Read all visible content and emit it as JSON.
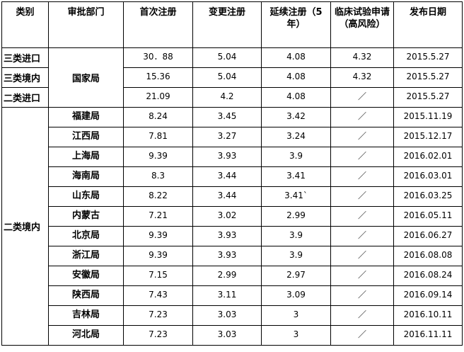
{
  "headers": [
    "类别",
    "审批部门",
    "首次注册",
    "变更注册",
    "延续注册（5年）",
    "临床试验申请（高风险）",
    "发布日期"
  ],
  "national": {
    "department": "国家局",
    "rows": [
      {
        "category": "三类进口",
        "first": "30．88",
        "change": "5.04",
        "renewal": "4.08",
        "clinical": "4.32",
        "date": "2015.5.27"
      },
      {
        "category": "三类境内",
        "first": "15.36",
        "change": "5.04",
        "renewal": "4.08",
        "clinical": "4.32",
        "date": "2015.5.27"
      },
      {
        "category": "二类进口",
        "first": "21.09",
        "change": "4.2",
        "renewal": "4.08",
        "clinical": "／",
        "date": "2015.5.27"
      }
    ]
  },
  "provincial": {
    "category": "二类境内",
    "rows": [
      {
        "department": "福建局",
        "first": "8.24",
        "change": "3.45",
        "renewal": "3.42",
        "clinical": "／",
        "date": "2015.11.19"
      },
      {
        "department": "江西局",
        "first": "7.81",
        "change": "3.27",
        "renewal": "3.24",
        "clinical": "／",
        "date": "2015.12.17"
      },
      {
        "department": "上海局",
        "first": "9.39",
        "change": "3.93",
        "renewal": "3.9",
        "clinical": "／",
        "date": "2016.02.01"
      },
      {
        "department": "海南局",
        "first": "8.3",
        "change": "3.44",
        "renewal": "3.41",
        "clinical": "／",
        "date": "2016.03.01"
      },
      {
        "department": "山东局",
        "first": "8.22",
        "change": "3.44",
        "renewal": "3.41`",
        "clinical": "／",
        "date": "2016.03.25"
      },
      {
        "department": "内蒙古",
        "first": "7.21",
        "change": "3.02",
        "renewal": "2.99",
        "clinical": "／",
        "date": "2016.05.11"
      },
      {
        "department": "北京局",
        "first": "9.39",
        "change": "3.93",
        "renewal": "3.9",
        "clinical": "／",
        "date": "2016.06.27"
      },
      {
        "department": "浙江局",
        "first": "9.39",
        "change": "3.93",
        "renewal": "3.9",
        "clinical": "／",
        "date": "2016.08.08"
      },
      {
        "department": "安徽局",
        "first": "7.15",
        "change": "2.99",
        "renewal": "2.97",
        "clinical": "／",
        "date": "2016.08.24"
      },
      {
        "department": "陕西局",
        "first": "7.43",
        "change": "3.11",
        "renewal": "3.09",
        "clinical": "／",
        "date": "2016.09.14"
      },
      {
        "department": "吉林局",
        "first": "7.23",
        "change": "3.03",
        "renewal": "3",
        "clinical": "／",
        "date": "2016.10.11"
      },
      {
        "department": "河北局",
        "first": "7.23",
        "change": "3.03",
        "renewal": "3",
        "clinical": "／",
        "date": "2016.11.11"
      }
    ]
  }
}
